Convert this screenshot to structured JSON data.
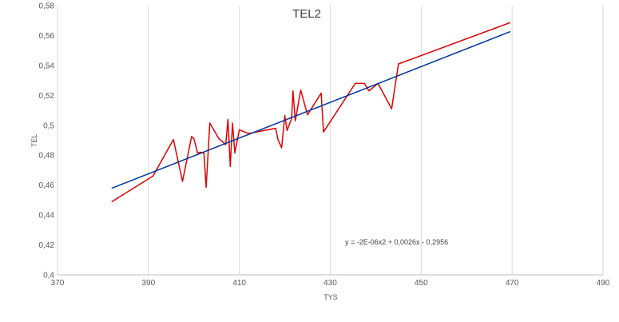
{
  "chart_data": {
    "type": "line",
    "title": "TEL2",
    "xlabel": "TYS",
    "ylabel": "TEL",
    "xlim": [
      370,
      490
    ],
    "ylim": [
      0.4,
      0.58
    ],
    "x_ticks": [
      370,
      390,
      410,
      430,
      450,
      470,
      490
    ],
    "x_tick_labels": [
      "370",
      "390",
      "410",
      "430",
      "450",
      "470",
      "490"
    ],
    "y_ticks": [
      0.4,
      0.42,
      0.44,
      0.46,
      0.48,
      0.5,
      0.52,
      0.54,
      0.56,
      0.58
    ],
    "y_tick_labels": [
      "0,4",
      "0,42",
      "0,44",
      "0,46",
      "0,48",
      "0,5",
      "0,52",
      "0,54",
      "0,56",
      "0,58"
    ],
    "grid": "vertical",
    "annotation": "y = -2E-06x2 + 0,0026x - 0,2956",
    "series": [
      {
        "kind": "data",
        "color": "#e00000",
        "points": [
          [
            382,
            0.449
          ],
          [
            391,
            0.466
          ],
          [
            395.5,
            0.4905
          ],
          [
            397.5,
            0.4625
          ],
          [
            399.5,
            0.4925
          ],
          [
            400,
            0.491
          ],
          [
            400.8,
            0.4815
          ],
          [
            401.5,
            0.482
          ],
          [
            402.2,
            0.4815
          ],
          [
            402.7,
            0.4585
          ],
          [
            403.5,
            0.5015
          ],
          [
            405.5,
            0.491
          ],
          [
            407,
            0.487
          ],
          [
            407.5,
            0.504
          ],
          [
            408,
            0.4725
          ],
          [
            408.5,
            0.5015
          ],
          [
            409,
            0.4815
          ],
          [
            410,
            0.497
          ],
          [
            412,
            0.4945
          ],
          [
            418,
            0.498
          ],
          [
            418.5,
            0.4905
          ],
          [
            419.3,
            0.485
          ],
          [
            420,
            0.5065
          ],
          [
            420.5,
            0.4965
          ],
          [
            421.5,
            0.5045
          ],
          [
            421.8,
            0.523
          ],
          [
            422.3,
            0.503
          ],
          [
            423.5,
            0.5235
          ],
          [
            425,
            0.507
          ],
          [
            428,
            0.5215
          ],
          [
            428.5,
            0.4955
          ],
          [
            435.5,
            0.528
          ],
          [
            437.5,
            0.528
          ],
          [
            438.5,
            0.523
          ],
          [
            440.5,
            0.528
          ],
          [
            443.5,
            0.511
          ],
          [
            445,
            0.541
          ],
          [
            469.5,
            0.5685
          ]
        ]
      },
      {
        "kind": "trendline",
        "color": "#00359e",
        "points": [
          [
            382,
            0.458
          ],
          [
            469.5,
            0.5625
          ]
        ]
      }
    ]
  }
}
